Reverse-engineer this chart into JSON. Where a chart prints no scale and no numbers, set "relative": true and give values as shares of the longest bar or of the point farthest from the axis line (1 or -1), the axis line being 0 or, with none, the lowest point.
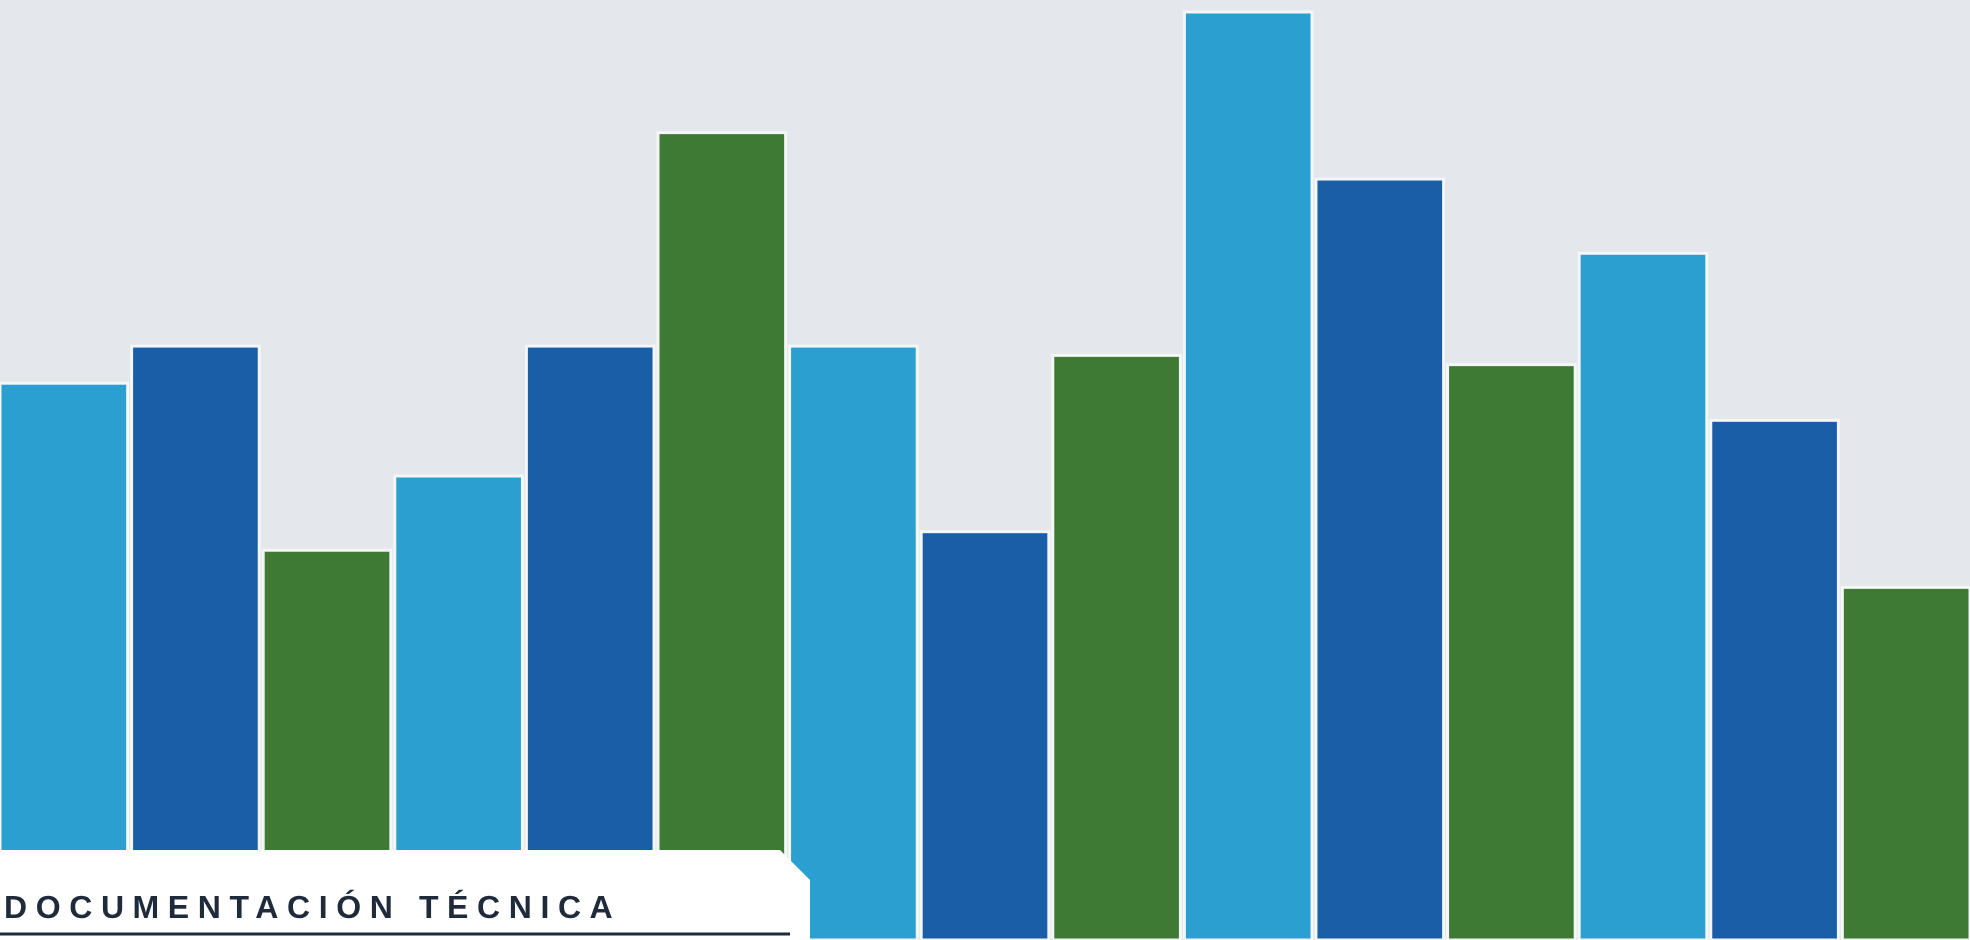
{
  "chart_data": {
    "type": "bar",
    "title": "DOCUMENTACIÓN TÉCNICA",
    "relative": true,
    "categories": [
      null,
      null,
      null,
      null,
      null,
      null,
      null,
      null,
      null,
      null,
      null,
      null,
      null,
      null,
      null
    ],
    "values": [
      0.6,
      0.64,
      0.42,
      0.5,
      0.64,
      0.87,
      0.64,
      0.44,
      0.63,
      1,
      0.82,
      0.62,
      0.74,
      0.56,
      0.38
    ],
    "colors": [
      "#2a9fd0",
      "#1a5ea8",
      "#3f7a35",
      "#2a9fd0",
      "#1a5ea8",
      "#3f7a35",
      "#2a9fd0",
      "#1a5ea8",
      "#3f7a35",
      "#2a9fd0",
      "#1a5ea8",
      "#3f7a35",
      "#2a9fd0",
      "#1a5ea8",
      "#3f7a35"
    ]
  }
}
